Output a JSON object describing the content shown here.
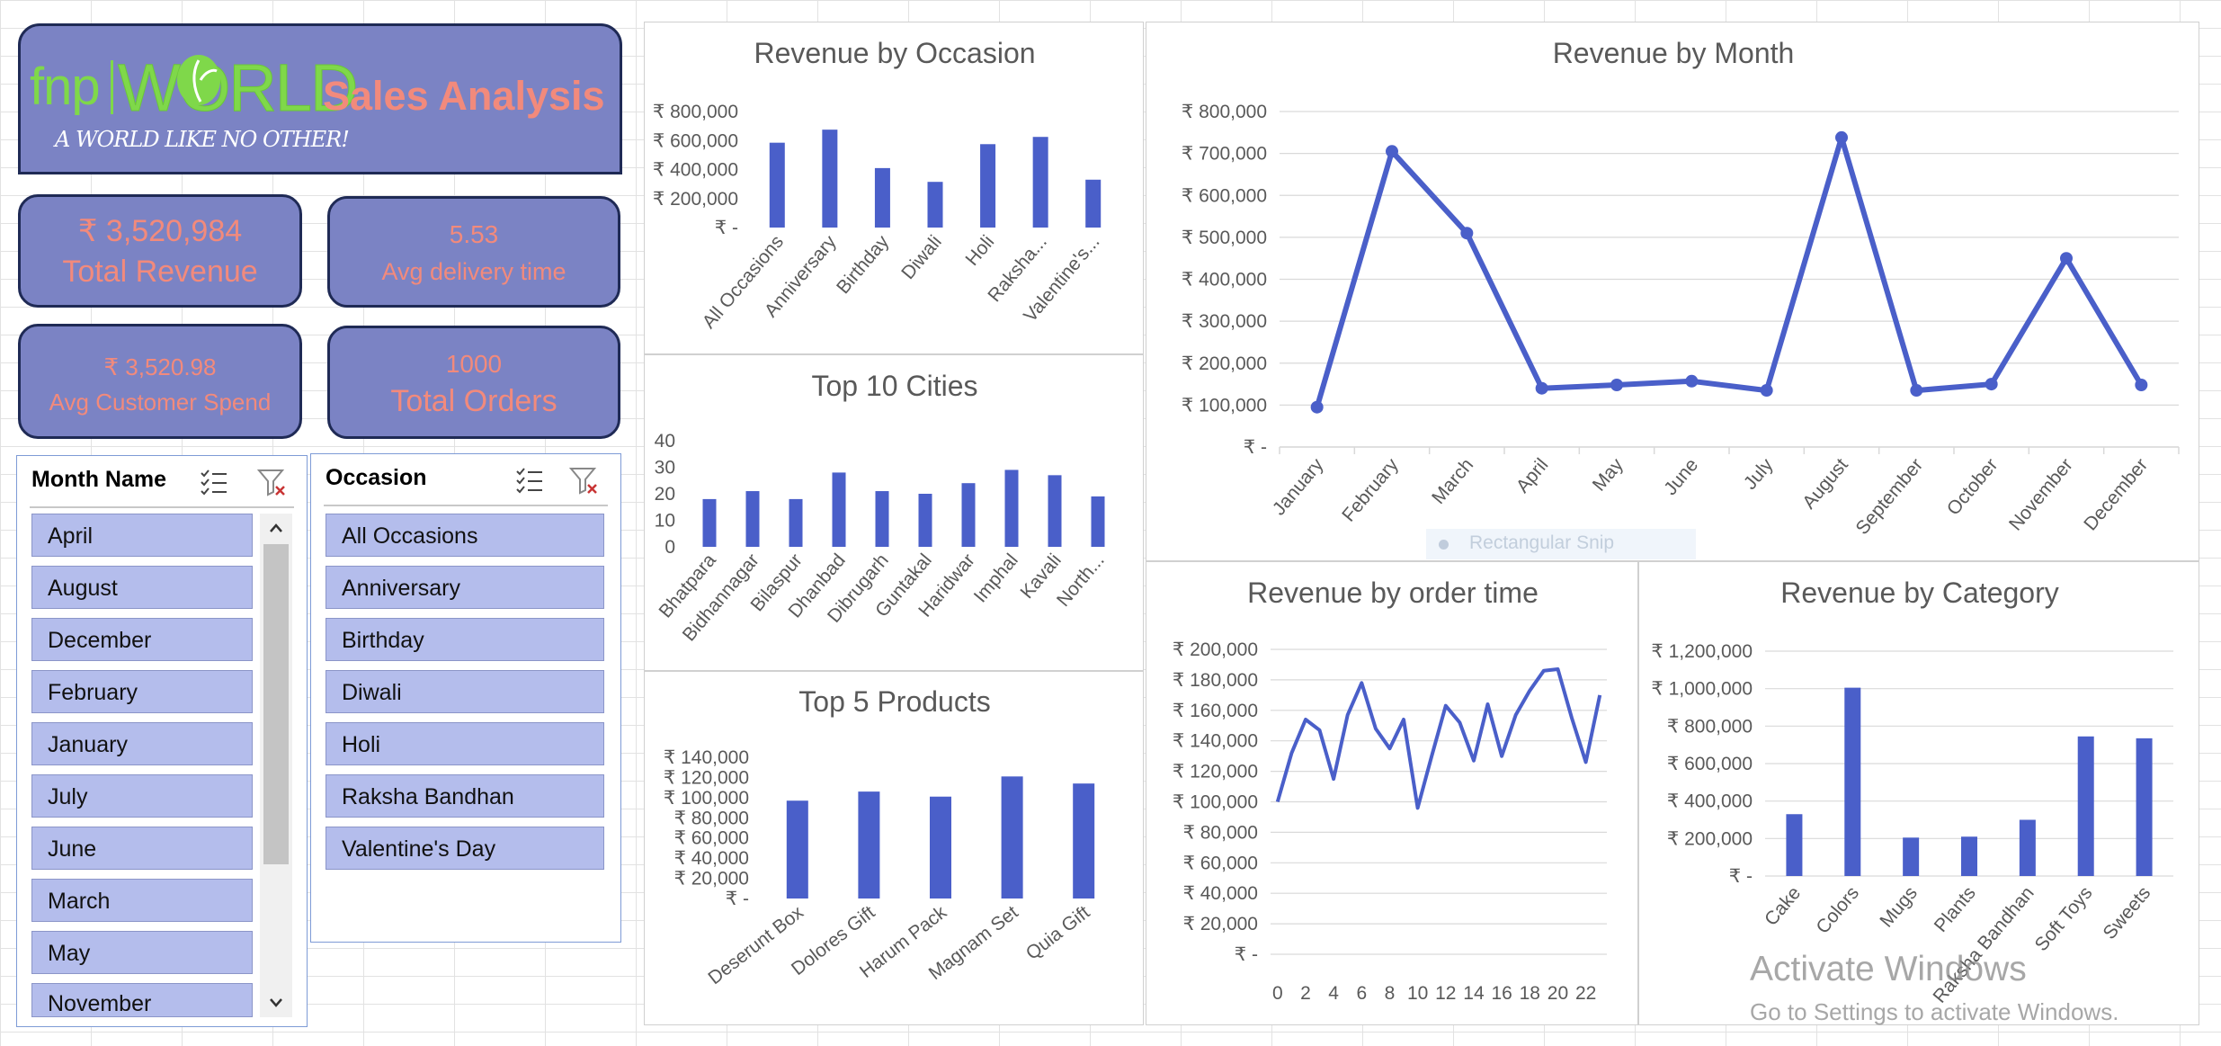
{
  "header": {
    "logo_fnp": "fnp",
    "logo_world": "WORLD",
    "tagline": "A WORLD LIKE NO OTHER!",
    "title": "Sales Analysis"
  },
  "kpis": {
    "revenue": {
      "value": "₹  3,520,984",
      "label": "Total Revenue"
    },
    "delivery": {
      "value": "5.53",
      "label": "Avg delivery time"
    },
    "spend": {
      "value": "₹ 3,520.98",
      "label": "Avg Customer Spend"
    },
    "orders": {
      "value": "1000",
      "label": "Total Orders"
    }
  },
  "slicers": {
    "month": {
      "title": "Month Name",
      "items": [
        "April",
        "August",
        "December",
        "February",
        "January",
        "July",
        "June",
        "March",
        "May",
        "November"
      ]
    },
    "occasion": {
      "title": "Occasion",
      "items": [
        "All Occasions",
        "Anniversary",
        "Birthday",
        "Diwali",
        "Holi",
        "Raksha Bandhan",
        "Valentine's Day"
      ]
    }
  },
  "overlay": {
    "snip_label": "Rectangular Snip",
    "activate_title": "Activate Windows",
    "activate_sub": "Go to Settings to activate Windows."
  },
  "colors": {
    "bar": "#4a5fc9",
    "kpi_bg": "#7b83c4",
    "kpi_text": "#f28a7c",
    "kpi_border": "#1f2a55",
    "slicer_item": "#b4bdec"
  },
  "chart_data": [
    {
      "id": "occasion",
      "type": "bar",
      "title": "Revenue by Occasion",
      "categories": [
        "All Occasions",
        "Anniversary",
        "Birthday",
        "Diwali",
        "Holi",
        "Raksha...",
        "Valentine's..."
      ],
      "values": [
        585000,
        675000,
        410000,
        315000,
        575000,
        625000,
        330000
      ],
      "ylim": [
        0,
        800000
      ],
      "yticks": [
        0,
        200000,
        400000,
        600000,
        800000
      ],
      "ytick_labels": [
        "₹ -",
        "₹ 200,000",
        "₹ 400,000",
        "₹ 600,000",
        "₹ 800,000"
      ],
      "grid": false
    },
    {
      "id": "cities",
      "type": "bar",
      "title": "Top 10 Cities",
      "categories": [
        "Bhatpara",
        "Bidhannagar",
        "Bilaspur",
        "Dhanbad",
        "Dibrugarh",
        "Guntakal",
        "Haridwar",
        "Imphal",
        "Kavali",
        "North..."
      ],
      "values": [
        18,
        21,
        18,
        28,
        21,
        20,
        24,
        29,
        27,
        19
      ],
      "ylim": [
        0,
        40
      ],
      "yticks": [
        0,
        10,
        20,
        30,
        40
      ],
      "ytick_labels": [
        "0",
        "10",
        "20",
        "30",
        "40"
      ],
      "grid": false
    },
    {
      "id": "products",
      "type": "bar",
      "title": "Top 5 Products",
      "categories": [
        "Deserunt Box",
        "Dolores Gift",
        "Harum Pack",
        "Magnam Set",
        "Quia Gift"
      ],
      "values": [
        97000,
        106000,
        101000,
        121000,
        114000
      ],
      "ylim": [
        0,
        140000
      ],
      "yticks": [
        0,
        20000,
        40000,
        60000,
        80000,
        100000,
        120000,
        140000
      ],
      "ytick_labels": [
        "₹ -",
        "₹ 20,000",
        "₹ 40,000",
        "₹ 60,000",
        "₹ 80,000",
        "₹ 100,000",
        "₹ 120,000",
        "₹ 140,000"
      ],
      "grid": false
    },
    {
      "id": "month",
      "type": "line",
      "title": "Revenue by Month",
      "categories": [
        "January",
        "February",
        "March",
        "April",
        "May",
        "June",
        "July",
        "August",
        "September",
        "October",
        "November",
        "December"
      ],
      "values": [
        95000,
        705000,
        510000,
        140000,
        148000,
        157000,
        135000,
        738000,
        135000,
        150000,
        450000,
        148000
      ],
      "markers": true,
      "ylim": [
        0,
        800000
      ],
      "yticks": [
        0,
        100000,
        200000,
        300000,
        400000,
        500000,
        600000,
        700000,
        800000
      ],
      "ytick_labels": [
        "₹ -",
        "₹ 100,000",
        "₹ 200,000",
        "₹ 300,000",
        "₹ 400,000",
        "₹ 500,000",
        "₹ 600,000",
        "₹ 700,000",
        "₹ 800,000"
      ],
      "grid": true
    },
    {
      "id": "ordertime",
      "type": "line",
      "title": "Revenue by order time",
      "x": [
        0,
        1,
        2,
        3,
        4,
        5,
        6,
        7,
        8,
        9,
        10,
        11,
        12,
        13,
        14,
        15,
        16,
        17,
        18,
        19,
        20,
        21,
        22,
        23
      ],
      "values": [
        100000,
        132000,
        154000,
        147000,
        115000,
        157000,
        178000,
        148000,
        135000,
        154000,
        96000,
        130000,
        163000,
        152000,
        127000,
        164000,
        130000,
        157000,
        173000,
        186000,
        187000,
        155000,
        126000,
        170000
      ],
      "xtick_labels": [
        "0",
        "2",
        "4",
        "6",
        "8",
        "10",
        "12",
        "14",
        "16",
        "18",
        "20",
        "22"
      ],
      "markers": false,
      "ylim": [
        0,
        200000
      ],
      "yticks": [
        0,
        20000,
        40000,
        60000,
        80000,
        100000,
        120000,
        140000,
        160000,
        180000,
        200000
      ],
      "ytick_labels": [
        "₹ -",
        "₹ 20,000",
        "₹ 40,000",
        "₹ 60,000",
        "₹ 80,000",
        "₹ 100,000",
        "₹ 120,000",
        "₹ 140,000",
        "₹ 160,000",
        "₹ 180,000",
        "₹ 200,000"
      ],
      "grid": true
    },
    {
      "id": "category",
      "type": "bar",
      "title": "Revenue by Category",
      "categories": [
        "Cake",
        "Colors",
        "Mugs",
        "Plants",
        "Raksha Bandhan",
        "Soft Toys",
        "Sweets"
      ],
      "values": [
        330000,
        1005000,
        205000,
        210000,
        300000,
        745000,
        735000
      ],
      "ylim": [
        0,
        1200000
      ],
      "yticks": [
        0,
        200000,
        400000,
        600000,
        800000,
        1000000,
        1200000
      ],
      "ytick_labels": [
        "₹ -",
        "₹ 200,000",
        "₹ 400,000",
        "₹ 600,000",
        "₹ 800,000",
        "₹ 1,000,000",
        "₹ 1,200,000"
      ],
      "grid": true
    }
  ]
}
